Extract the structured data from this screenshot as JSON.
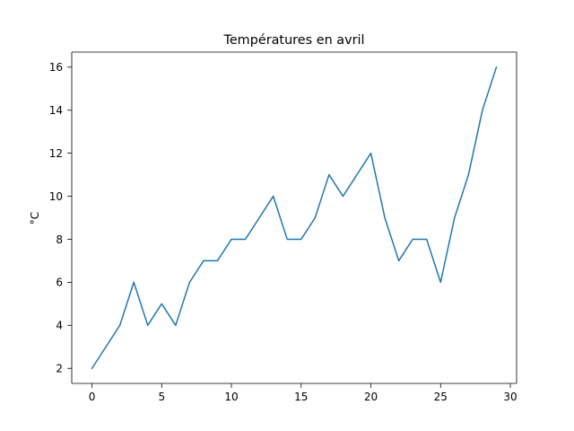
{
  "chart_data": {
    "type": "line",
    "title": "Températures en avril",
    "xlabel": "",
    "ylabel": "°C",
    "x": [
      0,
      1,
      2,
      3,
      4,
      5,
      6,
      7,
      8,
      9,
      10,
      11,
      12,
      13,
      14,
      15,
      16,
      17,
      18,
      19,
      20,
      21,
      22,
      23,
      24,
      25,
      26,
      27,
      28,
      29
    ],
    "series": [
      {
        "values": [
          2,
          3,
          4,
          6,
          4,
          5,
          4,
          6,
          7,
          7,
          8,
          8,
          9,
          10,
          8,
          8,
          9,
          11,
          10,
          11,
          12,
          9,
          7,
          8,
          8,
          6,
          9,
          11,
          14,
          16
        ],
        "color": "#1f77b4"
      }
    ],
    "xlim": [
      -1.45,
      30.45
    ],
    "ylim": [
      1.3,
      16.7
    ],
    "xticks": [
      0,
      5,
      10,
      15,
      20,
      25,
      30
    ],
    "yticks": [
      2,
      4,
      6,
      8,
      10,
      12,
      14,
      16
    ],
    "grid": false,
    "legend": "none"
  }
}
